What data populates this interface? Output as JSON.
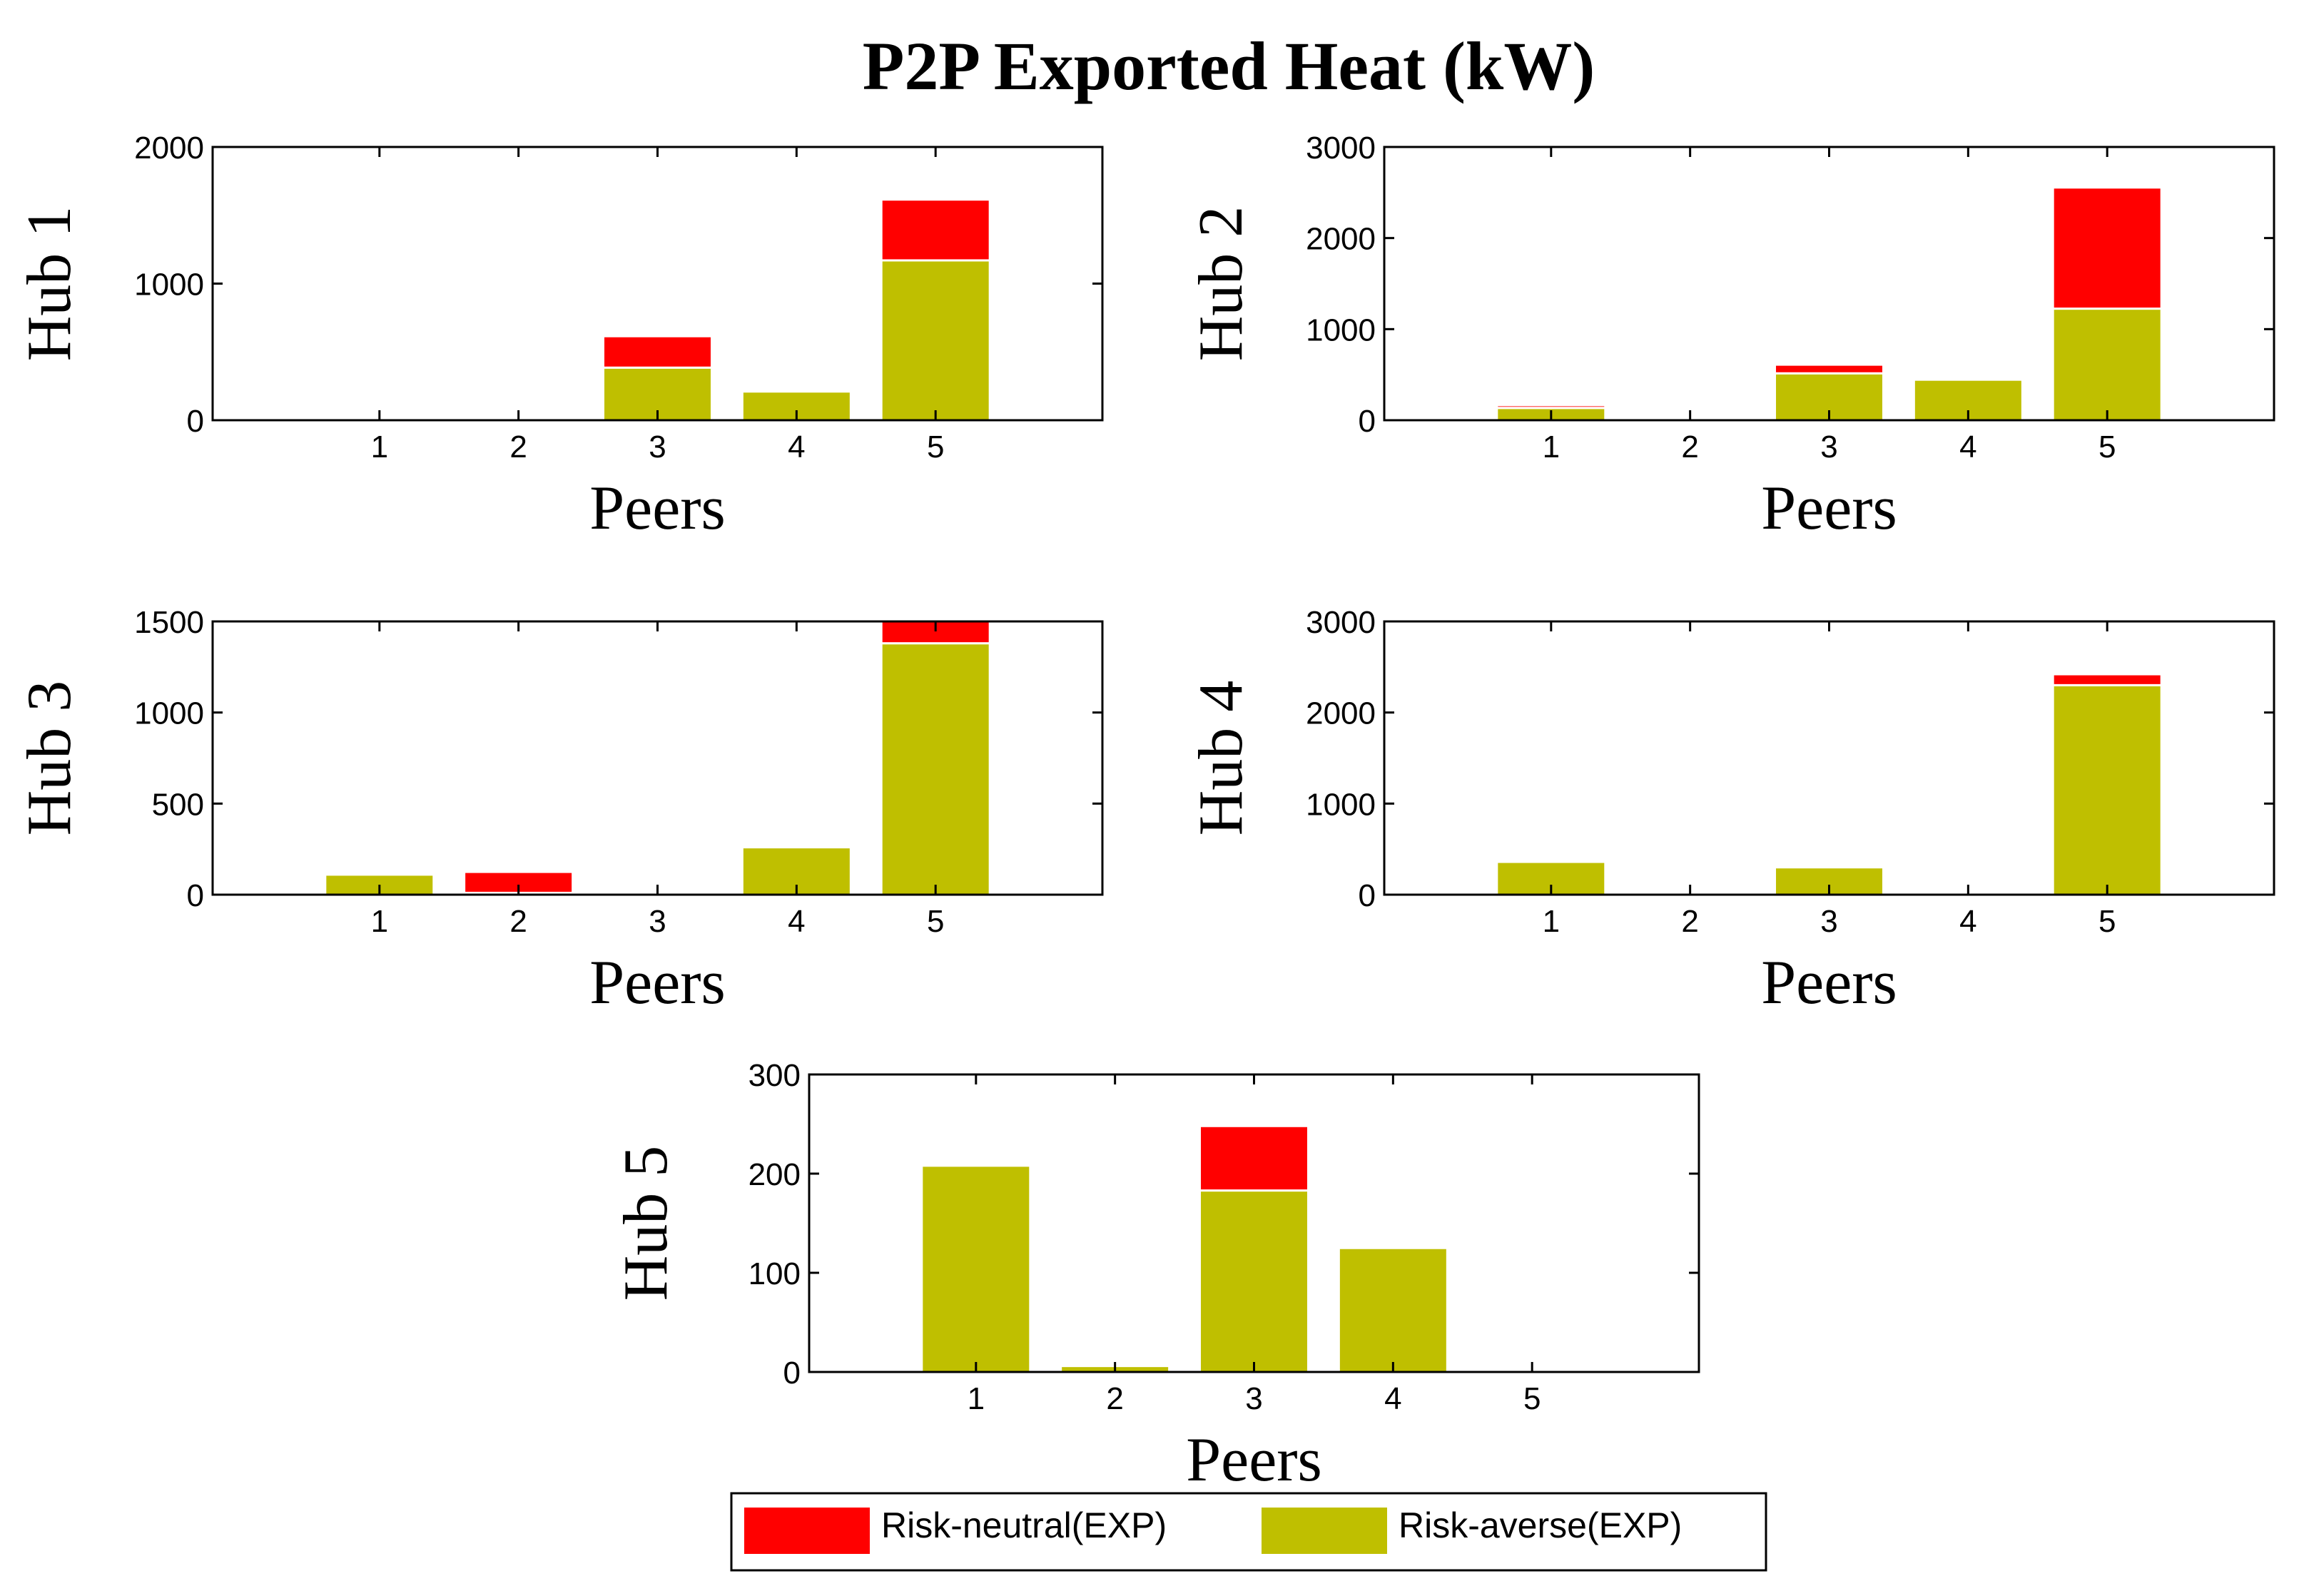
{
  "figure_title": "P2P Exported Heat (kW)",
  "colors": {
    "risk_neutral": "#ff0000",
    "risk_averse": "#bfbf00",
    "axis": "#000000",
    "background": "#ffffff"
  },
  "legend": {
    "items": [
      {
        "label": "Risk-neutral(EXP)",
        "color": "#ff0000"
      },
      {
        "label": "Risk-averse(EXP)",
        "color": "#bfbf00"
      }
    ]
  },
  "chart_data": [
    {
      "type": "bar",
      "stacked": true,
      "ylabel": "Hub 1",
      "xlabel": "Peers",
      "categories": [
        "1",
        "2",
        "3",
        "4",
        "5"
      ],
      "ylim": [
        0,
        2000
      ],
      "yticks": [
        0,
        1000,
        2000
      ],
      "series": [
        {
          "name": "Risk-averse(EXP)",
          "values": [
            0,
            0,
            385,
            210,
            1170
          ]
        },
        {
          "name": "Risk-neutral(EXP)",
          "values": [
            0,
            0,
            230,
            0,
            445
          ]
        }
      ]
    },
    {
      "type": "bar",
      "stacked": true,
      "ylabel": "Hub 2",
      "xlabel": "Peers",
      "categories": [
        "1",
        "2",
        "3",
        "4",
        "5"
      ],
      "ylim": [
        0,
        3000
      ],
      "yticks": [
        0,
        1000,
        2000,
        3000
      ],
      "series": [
        {
          "name": "Risk-averse(EXP)",
          "values": [
            135,
            0,
            515,
            445,
            1225
          ]
        },
        {
          "name": "Risk-neutral(EXP)",
          "values": [
            30,
            0,
            95,
            0,
            1330
          ]
        }
      ]
    },
    {
      "type": "bar",
      "stacked": true,
      "ylabel": "Hub 3",
      "xlabel": "Peers",
      "categories": [
        "1",
        "2",
        "3",
        "4",
        "5"
      ],
      "ylim": [
        0,
        1500
      ],
      "yticks": [
        0,
        500,
        1000,
        1500
      ],
      "series": [
        {
          "name": "Risk-averse(EXP)",
          "values": [
            110,
            10,
            0,
            260,
            1380
          ]
        },
        {
          "name": "Risk-neutral(EXP)",
          "values": [
            0,
            115,
            0,
            0,
            150
          ]
        }
      ]
    },
    {
      "type": "bar",
      "stacked": true,
      "ylabel": "Hub 4",
      "xlabel": "Peers",
      "categories": [
        "1",
        "2",
        "3",
        "4",
        "5"
      ],
      "ylim": [
        0,
        3000
      ],
      "yticks": [
        0,
        1000,
        2000,
        3000
      ],
      "series": [
        {
          "name": "Risk-averse(EXP)",
          "values": [
            360,
            0,
            300,
            0,
            2300
          ]
        },
        {
          "name": "Risk-neutral(EXP)",
          "values": [
            0,
            0,
            0,
            0,
            120
          ]
        }
      ]
    },
    {
      "type": "bar",
      "stacked": true,
      "ylabel": "Hub 5",
      "xlabel": "Peers",
      "categories": [
        "1",
        "2",
        "3",
        "4",
        "5"
      ],
      "ylim": [
        0,
        300
      ],
      "yticks": [
        0,
        100,
        200,
        300
      ],
      "series": [
        {
          "name": "Risk-averse(EXP)",
          "values": [
            208,
            6,
            183,
            125,
            0
          ]
        },
        {
          "name": "Risk-neutral(EXP)",
          "values": [
            0,
            0,
            65,
            0,
            0
          ]
        }
      ]
    }
  ]
}
